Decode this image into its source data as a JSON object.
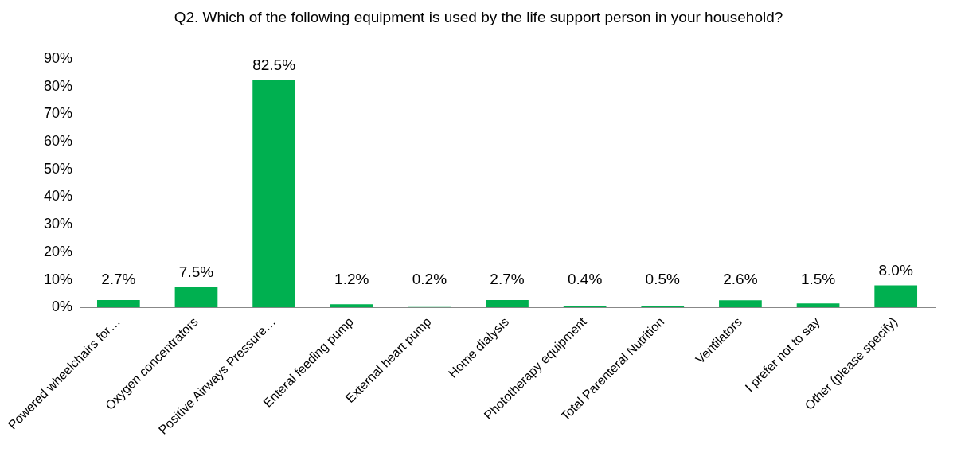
{
  "chart_data": {
    "type": "bar",
    "title": "Q2. Which of the following equipment is used by the life support person in your household?",
    "categories": [
      "Powered wheelchairs for…",
      "Oxygen concentrators",
      "Positive Airways Pressure…",
      "Enteral feeding pump",
      "External heart pump",
      "Home dialysis",
      "Phototherapy equipment",
      "Total Parenteral Nutrition",
      "Ventilators",
      "I prefer not to say",
      "Other (please specify)"
    ],
    "values": [
      2.7,
      7.5,
      82.5,
      1.2,
      0.2,
      2.7,
      0.4,
      0.5,
      2.6,
      1.5,
      8.0
    ],
    "value_labels": [
      "2.7%",
      "7.5%",
      "82.5%",
      "1.2%",
      "0.2%",
      "2.7%",
      "0.4%",
      "0.5%",
      "2.6%",
      "1.5%",
      "8.0%"
    ],
    "color": "#00b050",
    "ylim": [
      0,
      90
    ],
    "yticks": [
      {
        "value": 0,
        "label": "0%"
      },
      {
        "value": 10,
        "label": "10%"
      },
      {
        "value": 20,
        "label": "20%"
      },
      {
        "value": 30,
        "label": "30%"
      },
      {
        "value": 40,
        "label": "40%"
      },
      {
        "value": 50,
        "label": "50%"
      },
      {
        "value": 60,
        "label": "60%"
      },
      {
        "value": 70,
        "label": "70%"
      },
      {
        "value": 80,
        "label": "80%"
      },
      {
        "value": 90,
        "label": "90%"
      }
    ],
    "grid": false,
    "legend": false
  }
}
